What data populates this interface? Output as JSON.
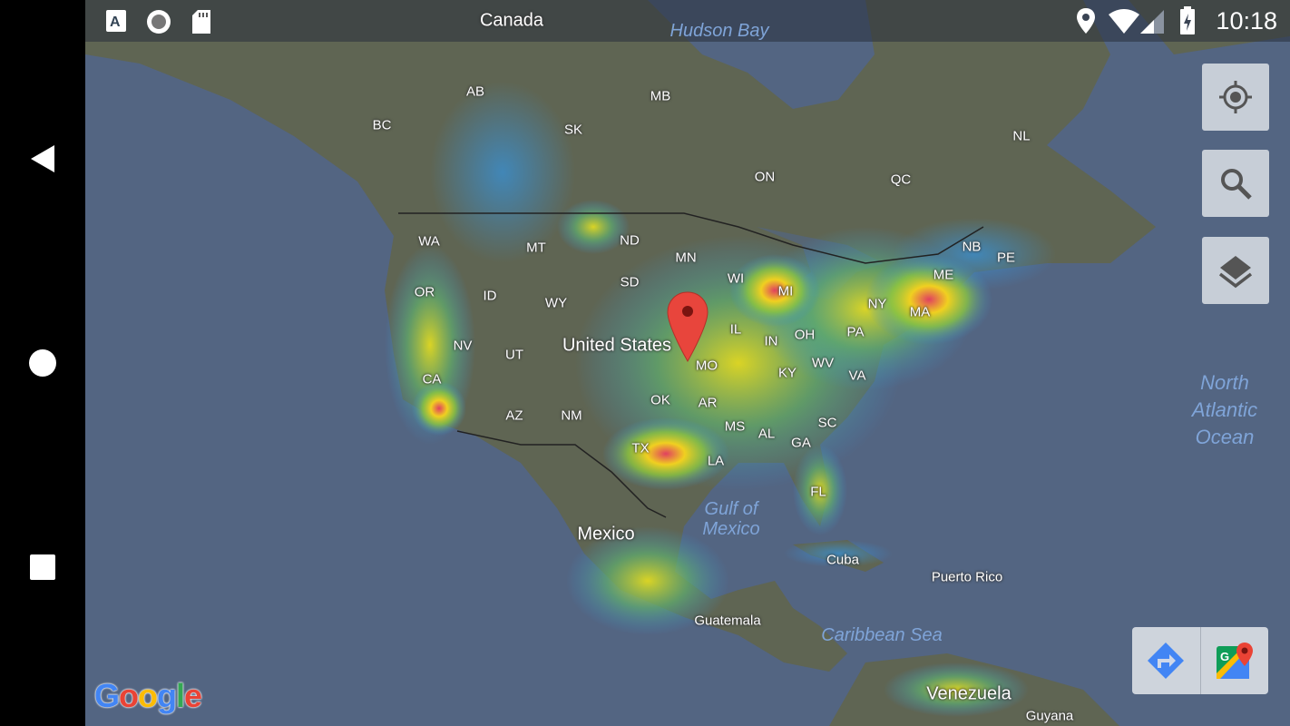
{
  "status_bar": {
    "left_icons": [
      "text-a-icon",
      "record-icon",
      "sd-card-icon"
    ],
    "right_icons": [
      "location-icon",
      "wifi-icon",
      "signal-icon",
      "battery-charging-icon"
    ],
    "time": "10:18"
  },
  "nav_bar": {
    "buttons": [
      "back",
      "home",
      "recents"
    ]
  },
  "map": {
    "country_labels": [
      "Canada",
      "United States",
      "Mexico",
      "Cuba",
      "Puerto Rico",
      "Guatemala",
      "Venezuela",
      "Guyana"
    ],
    "region_labels": [
      "AB",
      "BC",
      "SK",
      "MB",
      "ON",
      "QC",
      "NL",
      "NB",
      "PE",
      "WA",
      "MT",
      "ND",
      "MN",
      "OR",
      "ID",
      "WY",
      "SD",
      "WI",
      "MI",
      "ME",
      "NY",
      "MA",
      "NV",
      "UT",
      "IL",
      "IN",
      "OH",
      "PA",
      "CA",
      "MO",
      "KY",
      "WV",
      "VA",
      "OK",
      "AR",
      "AZ",
      "NM",
      "MS",
      "AL",
      "SC",
      "TX",
      "GA",
      "LA",
      "FL"
    ],
    "water_labels": [
      "Hudson Bay",
      "North Atlantic Ocean",
      "Gulf of Mexico",
      "Caribbean Sea"
    ],
    "overlay": "light-pollution-heatmap",
    "marker": "red-pin",
    "attribution": "Google"
  },
  "controls": {
    "my_location": "crosshair-icon",
    "search": "search-icon",
    "layers": "layers-icon",
    "directions": "directions-icon",
    "open_maps": "google-maps-icon"
  },
  "colors": {
    "ocean": "#536582",
    "land": "#5f6553",
    "heat_low": "#3a8fd0",
    "heat_mid": "#e8e020",
    "heat_high": "#e04060"
  }
}
